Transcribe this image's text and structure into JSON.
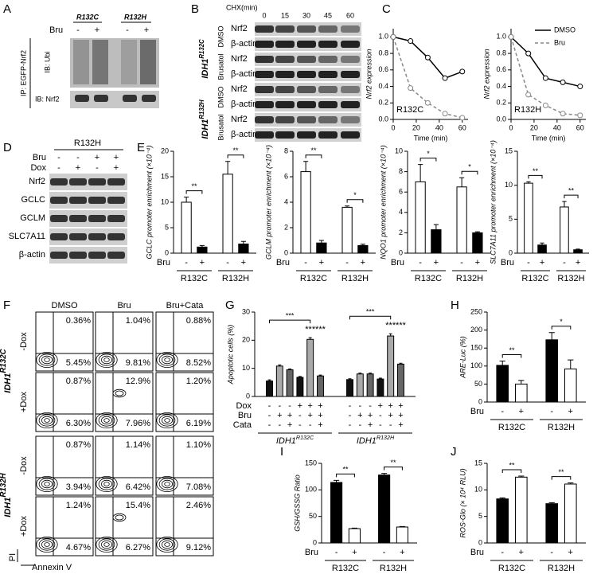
{
  "panel_labels": [
    "A",
    "B",
    "C",
    "D",
    "E",
    "F",
    "G",
    "H",
    "I",
    "J"
  ],
  "blot_a": {
    "lanes": [
      "R132C",
      "R132H"
    ],
    "treatment": "Bru",
    "signs": [
      "-",
      "+",
      "-",
      "+"
    ],
    "ip": "IP: EGFP-Nrf2",
    "ib": [
      "IB: Ubi",
      "IB: Nrf2"
    ]
  },
  "blot_b": {
    "header": "CHX(min)",
    "times": [
      "0",
      "15",
      "30",
      "45",
      "60"
    ],
    "rows": [
      "Nrf2",
      "β-actin"
    ],
    "genotypes": [
      {
        "name": "IDH1",
        "sup": "R132C",
        "conditions": [
          "DMSO",
          "Brusatol"
        ]
      },
      {
        "name": "IDH1",
        "sup": "R132H",
        "conditions": [
          "DMSO",
          "Brusatol"
        ]
      }
    ]
  },
  "blot_d": {
    "title": "R132H",
    "conditions": [
      {
        "label": "Bru",
        "signs": [
          "-",
          "-",
          "+",
          "+"
        ]
      },
      {
        "label": "Dox",
        "signs": [
          "-",
          "+",
          "-",
          "+"
        ]
      }
    ],
    "rows": [
      "Nrf2",
      "GCLC",
      "GCLM",
      "SLC7A11",
      "β-actin"
    ]
  },
  "flow": {
    "columns": [
      "DMSO",
      "Bru",
      "Bru+Cata"
    ],
    "y_axis": "PI",
    "x_axis": "Annexin V",
    "genotypes": [
      {
        "name": "IDH1",
        "sup": "R132C",
        "rows": [
          {
            "label": "-Dox",
            "cells": [
              [
                "0.36%",
                "5.45%"
              ],
              [
                "1.04%",
                "9.81%"
              ],
              [
                "0.88%",
                "8.52%"
              ]
            ]
          },
          {
            "label": "+Dox",
            "cells": [
              [
                "0.87%",
                "6.30%"
              ],
              [
                "12.9%",
                "7.96%"
              ],
              [
                "1.20%",
                "6.19%"
              ]
            ]
          }
        ]
      },
      {
        "name": "IDH1",
        "sup": "R132H",
        "rows": [
          {
            "label": "-Dox",
            "cells": [
              [
                "0.87%",
                "3.94%"
              ],
              [
                "1.14%",
                "6.42%"
              ],
              [
                "1.10%",
                "7.08%"
              ]
            ]
          },
          {
            "label": "+Dox",
            "cells": [
              [
                "1.24%",
                "4.67%"
              ],
              [
                "15.4%",
                "6.27%"
              ],
              [
                "2.46%",
                "9.12%"
              ]
            ]
          }
        ]
      }
    ]
  },
  "chart_data": [
    {
      "type": "line",
      "x_label": "Time (min)",
      "y_label": "Nrf2 expression",
      "annotation": "R132C",
      "xlim": [
        0,
        65
      ],
      "xticks": [
        0,
        20,
        40,
        60
      ],
      "ylim": [
        0,
        1.1
      ],
      "yticks": [
        {
          "value": 0,
          "label": "0.0"
        },
        {
          "value": 0.2,
          "label": "0.2"
        },
        {
          "value": 0.4,
          "label": "0.4"
        },
        {
          "value": 0.6,
          "label": "0.6"
        },
        {
          "value": 0.8,
          "label": "0.8"
        },
        {
          "value": 1,
          "label": "1.0"
        }
      ],
      "x": [
        0,
        15,
        30,
        45,
        60
      ],
      "series": [
        {
          "color": "#000000",
          "style": "solid",
          "values": [
            1,
            0.95,
            0.75,
            0.5,
            0.58
          ]
        },
        {
          "color": "#888888",
          "style": "dashed",
          "values": [
            1,
            0.38,
            0.2,
            0.07,
            0.02
          ]
        }
      ]
    },
    {
      "type": "line",
      "x_label": "Time (min)",
      "y_label": "Nrf2 expression",
      "annotation": "R132H",
      "legend": "upper right",
      "xlim": [
        0,
        65
      ],
      "xticks": [
        0,
        20,
        40,
        60
      ],
      "ylim": [
        0,
        1.1
      ],
      "yticks": [
        {
          "value": 0,
          "label": "0.0"
        },
        {
          "value": 0.2,
          "label": "0.2"
        },
        {
          "value": 0.4,
          "label": "0.4"
        },
        {
          "value": 0.6,
          "label": "0.6"
        },
        {
          "value": 0.8,
          "label": "0.8"
        },
        {
          "value": 1,
          "label": "1.0"
        }
      ],
      "x": [
        0,
        15,
        30,
        45,
        60
      ],
      "series": [
        {
          "name": "DMSO",
          "color": "#000000",
          "style": "solid",
          "values": [
            1,
            0.8,
            0.5,
            0.45,
            0.4
          ]
        },
        {
          "name": "Bru",
          "color": "#888888",
          "style": "dashed",
          "values": [
            1,
            0.3,
            0.17,
            0.07,
            0.05
          ]
        }
      ]
    },
    {
      "type": "bar",
      "y_label": "GCLC promoter enrichment (×10⁻⁴)",
      "ylim": [
        0,
        20
      ],
      "yticks": [
        0,
        5,
        10,
        15,
        20
      ],
      "values": [
        10,
        1.2,
        15.5,
        1.8
      ],
      "errors": [
        1,
        0.3,
        2.5,
        0.5
      ],
      "colors": [
        "#ffffff",
        "#000000",
        "#ffffff",
        "#000000"
      ],
      "conditions": [
        {
          "label": "Bru",
          "signs": [
            "-",
            "+",
            "-",
            "+"
          ]
        }
      ],
      "groups": [
        {
          "name": "R132C"
        },
        {
          "name": "R132H"
        }
      ],
      "significance": [
        "**",
        "**"
      ]
    },
    {
      "type": "bar",
      "y_label": "GCLM promoter enrichment (×10⁻⁴)",
      "ylim": [
        0,
        8
      ],
      "yticks": [
        0,
        2,
        4,
        6,
        8
      ],
      "values": [
        6.4,
        0.8,
        3.6,
        0.6
      ],
      "errors": [
        0.8,
        0.2,
        0.1,
        0.1
      ],
      "colors": [
        "#ffffff",
        "#000000",
        "#ffffff",
        "#000000"
      ],
      "conditions": [
        {
          "label": "Bru",
          "signs": [
            "-",
            "+",
            "-",
            "+"
          ]
        }
      ],
      "groups": [
        {
          "name": "R132C"
        },
        {
          "name": "R132H"
        }
      ],
      "significance": [
        "**",
        "*"
      ]
    },
    {
      "type": "bar",
      "y_label": "NQO1 promoter enrichment (×10⁻⁴)",
      "ylim": [
        0,
        10
      ],
      "yticks": [
        0,
        2,
        4,
        6,
        8,
        10
      ],
      "values": [
        7,
        2.3,
        6.5,
        2
      ],
      "errors": [
        1.7,
        0.5,
        0.9,
        0.1
      ],
      "colors": [
        "#ffffff",
        "#000000",
        "#ffffff",
        "#000000"
      ],
      "conditions": [
        {
          "label": "Bru",
          "signs": [
            "-",
            "+",
            "-",
            "+"
          ]
        }
      ],
      "groups": [
        {
          "name": "R132C"
        },
        {
          "name": "R132H"
        }
      ],
      "significance": [
        "*",
        "*"
      ]
    },
    {
      "type": "bar",
      "y_label": "SLC7A11 promoter enrichment (×10⁻⁴)",
      "ylim": [
        0,
        15
      ],
      "yticks": [
        0,
        5,
        10,
        15
      ],
      "values": [
        10.3,
        1.2,
        6.8,
        0.5
      ],
      "errors": [
        0.2,
        0.3,
        0.8,
        0.1
      ],
      "colors": [
        "#ffffff",
        "#000000",
        "#ffffff",
        "#000000"
      ],
      "conditions": [
        {
          "label": "Bru",
          "signs": [
            "-",
            "+",
            "-",
            "+"
          ]
        }
      ],
      "groups": [
        {
          "name": "R132C"
        },
        {
          "name": "R132H"
        }
      ],
      "significance": [
        "**",
        "**"
      ]
    },
    {
      "type": "bar",
      "y_label": "Apoptotic cells (%)",
      "ylim": [
        0,
        30
      ],
      "yticks": [
        0,
        10,
        20,
        30
      ],
      "values": [
        5.5,
        10.8,
        9.5,
        6.8,
        20.3,
        7.3,
        6,
        8,
        8,
        6.2,
        21.5,
        11.5
      ],
      "errors": [
        0.4,
        0.4,
        0.3,
        0.3,
        0.6,
        0.3,
        0.3,
        0.3,
        0.3,
        0.3,
        0.8,
        0.3
      ],
      "colors": [
        "#111111",
        "#aaaaaa",
        "#666666",
        "#111111",
        "#aaaaaa",
        "#666666",
        "#111111",
        "#aaaaaa",
        "#666666",
        "#111111",
        "#aaaaaa",
        "#666666"
      ],
      "conditions": [
        {
          "label": "Dox",
          "signs": [
            "-",
            "-",
            "-",
            "+",
            "+",
            "+",
            "-",
            "-",
            "-",
            "+",
            "+",
            "+"
          ]
        },
        {
          "label": "Bru",
          "signs": [
            "-",
            "+",
            "+",
            "-",
            "+",
            "+",
            "-",
            "+",
            "+",
            "-",
            "+",
            "+"
          ]
        },
        {
          "label": "Cata",
          "signs": [
            "-",
            "-",
            "+",
            "-",
            "-",
            "+",
            "-",
            "-",
            "+",
            "-",
            "-",
            "+"
          ]
        }
      ],
      "groups": [
        {
          "name": "IDH1",
          "sup": "R132C"
        },
        {
          "name": "IDH1",
          "sup": "R132H"
        }
      ],
      "significance": [
        "***",
        "***"
      ],
      "significance_inner": [
        [
          "***",
          "***"
        ],
        [
          "***",
          "***"
        ]
      ]
    },
    {
      "type": "bar",
      "y_label": "ARE-Luc (%)",
      "ylim": [
        0,
        250
      ],
      "yticks": [
        0,
        50,
        100,
        150,
        200,
        250
      ],
      "values": [
        102,
        50,
        173,
        92
      ],
      "errors": [
        12,
        10,
        20,
        25
      ],
      "colors": [
        "#000000",
        "#ffffff",
        "#000000",
        "#ffffff"
      ],
      "conditions": [
        {
          "label": "Bru",
          "signs": [
            "-",
            "+",
            "-",
            "+"
          ]
        }
      ],
      "groups": [
        {
          "name": "R132C"
        },
        {
          "name": "R132H"
        }
      ],
      "significance": [
        "**",
        "*"
      ]
    },
    {
      "type": "bar",
      "y_label": "GSH/GSSG Ratio",
      "ylim": [
        0,
        150
      ],
      "yticks": [
        0,
        50,
        100,
        150
      ],
      "values": [
        114,
        27,
        128,
        30
      ],
      "errors": [
        4,
        1,
        3,
        1
      ],
      "colors": [
        "#000000",
        "#ffffff",
        "#000000",
        "#ffffff"
      ],
      "conditions": [
        {
          "label": "Bru",
          "signs": [
            "-",
            "+",
            "-",
            "+"
          ]
        }
      ],
      "groups": [
        {
          "name": "R132C"
        },
        {
          "name": "R132H"
        }
      ],
      "significance": [
        "**",
        "**"
      ]
    },
    {
      "type": "bar",
      "y_label": "ROS-Glo (× 10⁴ RLU)",
      "ylim": [
        0,
        15
      ],
      "yticks": [
        0,
        5,
        10,
        15
      ],
      "values": [
        8.3,
        12.4,
        7.4,
        11.1
      ],
      "errors": [
        0.2,
        0.2,
        0.2,
        0.2
      ],
      "colors": [
        "#000000",
        "#ffffff",
        "#000000",
        "#ffffff"
      ],
      "conditions": [
        {
          "label": "Bru",
          "signs": [
            "-",
            "+",
            "-",
            "+"
          ]
        }
      ],
      "groups": [
        {
          "name": "R132C"
        },
        {
          "name": "R132H"
        }
      ],
      "significance": [
        "**",
        "**"
      ]
    }
  ]
}
